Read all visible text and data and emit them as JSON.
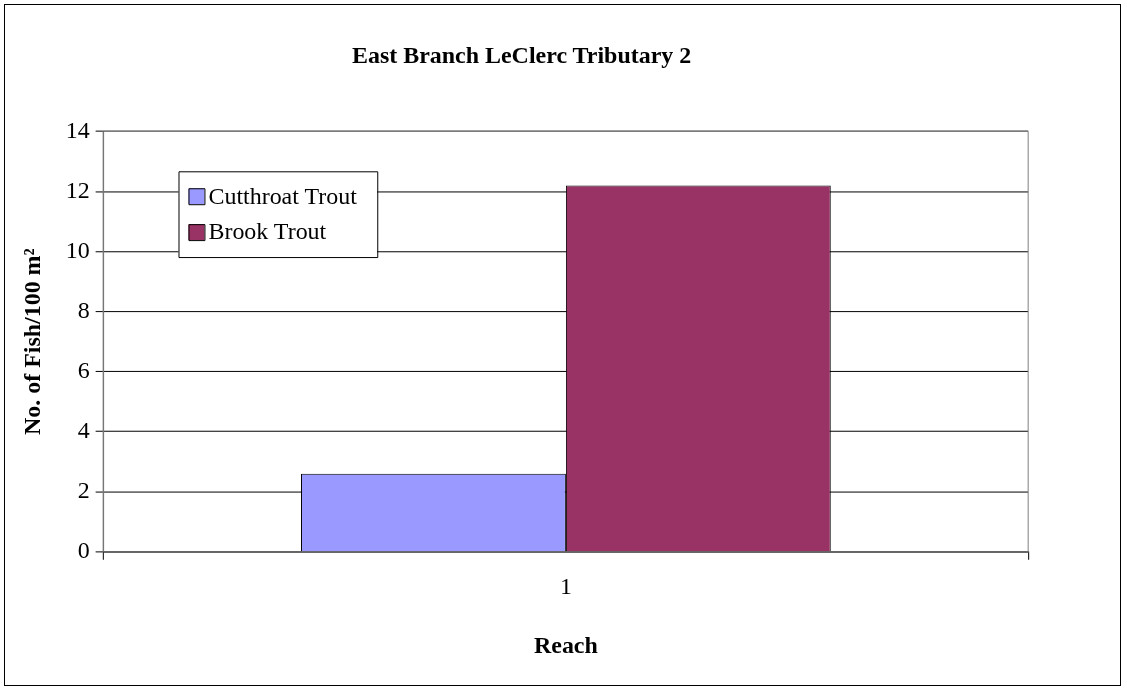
{
  "chart_data": {
    "type": "bar",
    "title": "East Branch LeClerc Tributary 2",
    "xlabel": "Reach",
    "ylabel": "No. of Fish/100 m²",
    "categories": [
      "1"
    ],
    "series": [
      {
        "name": "Cutthroat Trout",
        "color": "#9999ff",
        "values": [
          2.6
        ]
      },
      {
        "name": "Brook Trout",
        "color": "#993366",
        "values": [
          12.2
        ]
      }
    ],
    "ylim": [
      0,
      14
    ],
    "yticks": [
      0,
      2,
      4,
      6,
      8,
      10,
      12,
      14
    ],
    "grid": "y",
    "legend": "top left"
  }
}
